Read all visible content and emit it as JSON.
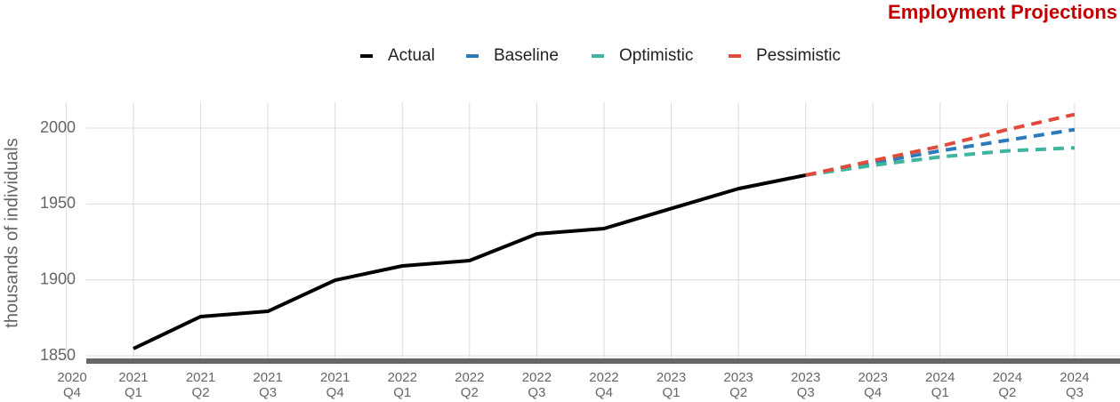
{
  "chart_data": {
    "type": "line",
    "title": "Employment Projections",
    "y_label": "thousands of individuals",
    "categories": [
      [
        "2020",
        "Q4"
      ],
      [
        "2021",
        "Q1"
      ],
      [
        "2021",
        "Q2"
      ],
      [
        "2021",
        "Q3"
      ],
      [
        "2021",
        "Q4"
      ],
      [
        "2022",
        "Q1"
      ],
      [
        "2022",
        "Q2"
      ],
      [
        "2022",
        "Q3"
      ],
      [
        "2022",
        "Q4"
      ],
      [
        "2023",
        "Q1"
      ],
      [
        "2023",
        "Q2"
      ],
      [
        "2023",
        "Q3"
      ],
      [
        "2023",
        "Q4"
      ],
      [
        "2024",
        "Q1"
      ],
      [
        "2024",
        "Q2"
      ],
      [
        "2024",
        "Q3"
      ]
    ],
    "series": [
      {
        "name": "Actual",
        "color": "#000000",
        "dashed": false,
        "values": [
          null,
          1854.7,
          1875.8,
          1879.3,
          1899.8,
          1909.2,
          1912.7,
          1930.3,
          1933.8,
          1947,
          1960.1,
          1969,
          null,
          null,
          null,
          null
        ]
      },
      {
        "name": "Baseline",
        "color": "#2b7bba",
        "dashed": true,
        "values": [
          null,
          null,
          null,
          null,
          null,
          null,
          null,
          null,
          null,
          null,
          null,
          1969,
          1977,
          1985,
          1992,
          1999
        ]
      },
      {
        "name": "Optimistic",
        "color": "#3fb5a0",
        "dashed": true,
        "values": [
          null,
          null,
          null,
          null,
          null,
          null,
          null,
          null,
          null,
          null,
          null,
          1969,
          1975.5,
          1981,
          1985,
          1987
        ]
      },
      {
        "name": "Pessimistic",
        "color": "#e04b3c",
        "dashed": true,
        "values": [
          null,
          null,
          null,
          null,
          null,
          null,
          null,
          null,
          null,
          null,
          null,
          1969,
          1978.5,
          1988,
          1999,
          2009
        ]
      }
    ],
    "ylim": [
      1846.5,
      2017
    ],
    "yticks": [
      1850,
      1900,
      1950,
      2000
    ],
    "grid": true,
    "legend": "top"
  }
}
